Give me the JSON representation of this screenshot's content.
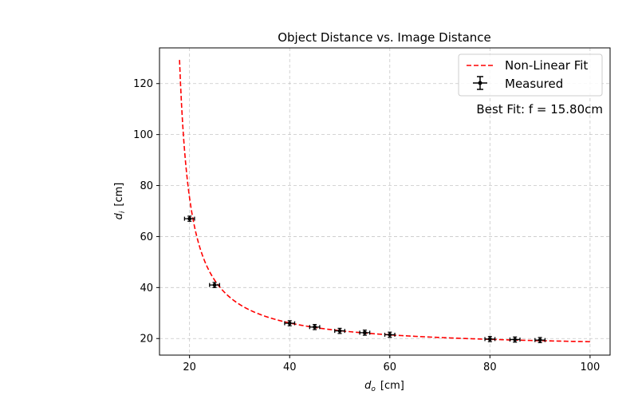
{
  "chart_data": {
    "type": "scatter",
    "title": "Object Distance vs. Image Distance",
    "xlabel": {
      "symbol": "d",
      "sub": "o",
      "unit": "[cm]"
    },
    "ylabel": {
      "symbol": "d",
      "sub": "i",
      "unit": "[cm]"
    },
    "xlim": [
      14,
      104
    ],
    "ylim": [
      13.5,
      134
    ],
    "xticks": [
      20,
      40,
      60,
      80,
      100
    ],
    "yticks": [
      20,
      40,
      60,
      80,
      100,
      120
    ],
    "grid": true,
    "legend_position": "top-right",
    "fit": {
      "name": "Non-Linear Fit",
      "color": "#ff0000",
      "focal_length": 15.8,
      "x_range": [
        18,
        100
      ]
    },
    "series": [
      {
        "name": "Measured",
        "color": "#000000",
        "x": [
          20,
          25,
          40,
          45,
          50,
          55,
          60,
          80,
          85,
          90
        ],
        "y": [
          67,
          41,
          26,
          24.5,
          23,
          22.3,
          21.5,
          19.8,
          19.6,
          19.4
        ],
        "xerr": [
          1,
          1,
          1,
          1,
          1,
          1,
          1,
          1,
          1,
          1
        ],
        "yerr": [
          1,
          1,
          1,
          1,
          1,
          1,
          1,
          1,
          1,
          1
        ]
      }
    ],
    "annotation": "Best Fit: f = 15.80cm"
  }
}
